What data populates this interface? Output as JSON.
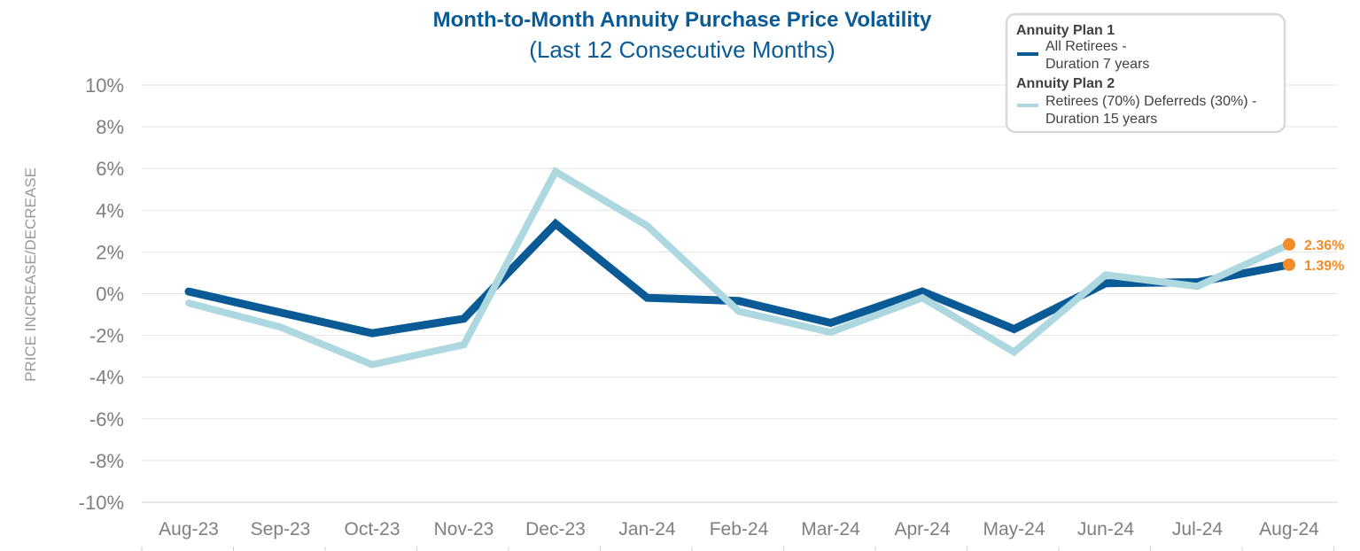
{
  "chart_data": {
    "type": "line",
    "title": "Month-to-Month Annuity Purchase Price Volatility",
    "subtitle": "(Last 12 Consecutive Months)",
    "ylabel": "PRICE INCREASE/DECREASE",
    "xlabel": "",
    "categories": [
      "Aug-23",
      "Sep-23",
      "Oct-23",
      "Nov-23",
      "Dec-23",
      "Jan-24",
      "Feb-24",
      "Mar-24",
      "Apr-24",
      "May-24",
      "Jun-24",
      "Jul-24",
      "Aug-24"
    ],
    "ylim": [
      -10,
      10
    ],
    "yticks": [
      10,
      8,
      6,
      4,
      2,
      0,
      -2,
      -4,
      -6,
      -8,
      -10
    ],
    "ytick_labels": [
      "10%",
      "8%",
      "6%",
      "4%",
      "2%",
      "0%",
      "-2%",
      "-4%",
      "-6%",
      "-8%",
      "-10%"
    ],
    "grid": true,
    "series": [
      {
        "name": "All Retirees - Duration 7 years",
        "group": "Annuity Plan 1",
        "color": "#0a5a96",
        "values": [
          0.1,
          -0.9,
          -1.9,
          -1.2,
          3.35,
          -0.2,
          -0.35,
          -1.4,
          0.1,
          -1.7,
          0.5,
          0.55,
          1.39
        ]
      },
      {
        "name": "Retirees (70%) Deferreds (30%) - Duration 15 years",
        "group": "Annuity Plan 2",
        "color": "#aed8e0",
        "values": [
          -0.45,
          -1.6,
          -3.4,
          -2.45,
          5.85,
          3.25,
          -0.85,
          -1.85,
          -0.2,
          -2.8,
          0.9,
          0.35,
          2.36
        ]
      }
    ],
    "annotations": [
      {
        "label": "2.36%",
        "category": "Aug-24",
        "value": 2.36,
        "color": "#f28c28"
      },
      {
        "label": "1.39%",
        "category": "Aug-24",
        "value": 1.39,
        "color": "#f28c28"
      }
    ],
    "legend": {
      "position": "top-right",
      "entries": [
        {
          "heading": "Annuity Plan 1",
          "line1": "All Retirees -",
          "line2": "Duration 7 years"
        },
        {
          "heading": "Annuity Plan 2",
          "line1": "Retirees (70%) Deferreds (30%) -",
          "line2": "Duration 15 years"
        }
      ]
    }
  }
}
